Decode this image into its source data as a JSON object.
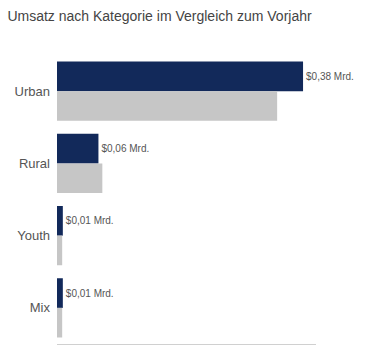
{
  "chart_data": {
    "type": "bar",
    "title": "Umsatz nach Kategorie im Vergleich zum Vorjahr",
    "orientation": "horizontal",
    "categories": [
      "Urban",
      "Rural",
      "Youth",
      "Mix"
    ],
    "series": [
      {
        "color": "#12295a",
        "values": [
          0.38,
          0.064,
          0.009,
          0.009
        ],
        "value_labels": [
          "$0,38 Mrd.",
          "$0,06 Mrd.",
          "$0,01 Mrd.",
          "$0,01 Mrd."
        ]
      },
      {
        "color": "#c6c6c6",
        "values": [
          0.34,
          0.07,
          0.008,
          0.008
        ]
      }
    ],
    "xlim": [
      0,
      0.4
    ],
    "xticks": [],
    "grid": false,
    "data_labels": true,
    "tick_labels": "y"
  }
}
